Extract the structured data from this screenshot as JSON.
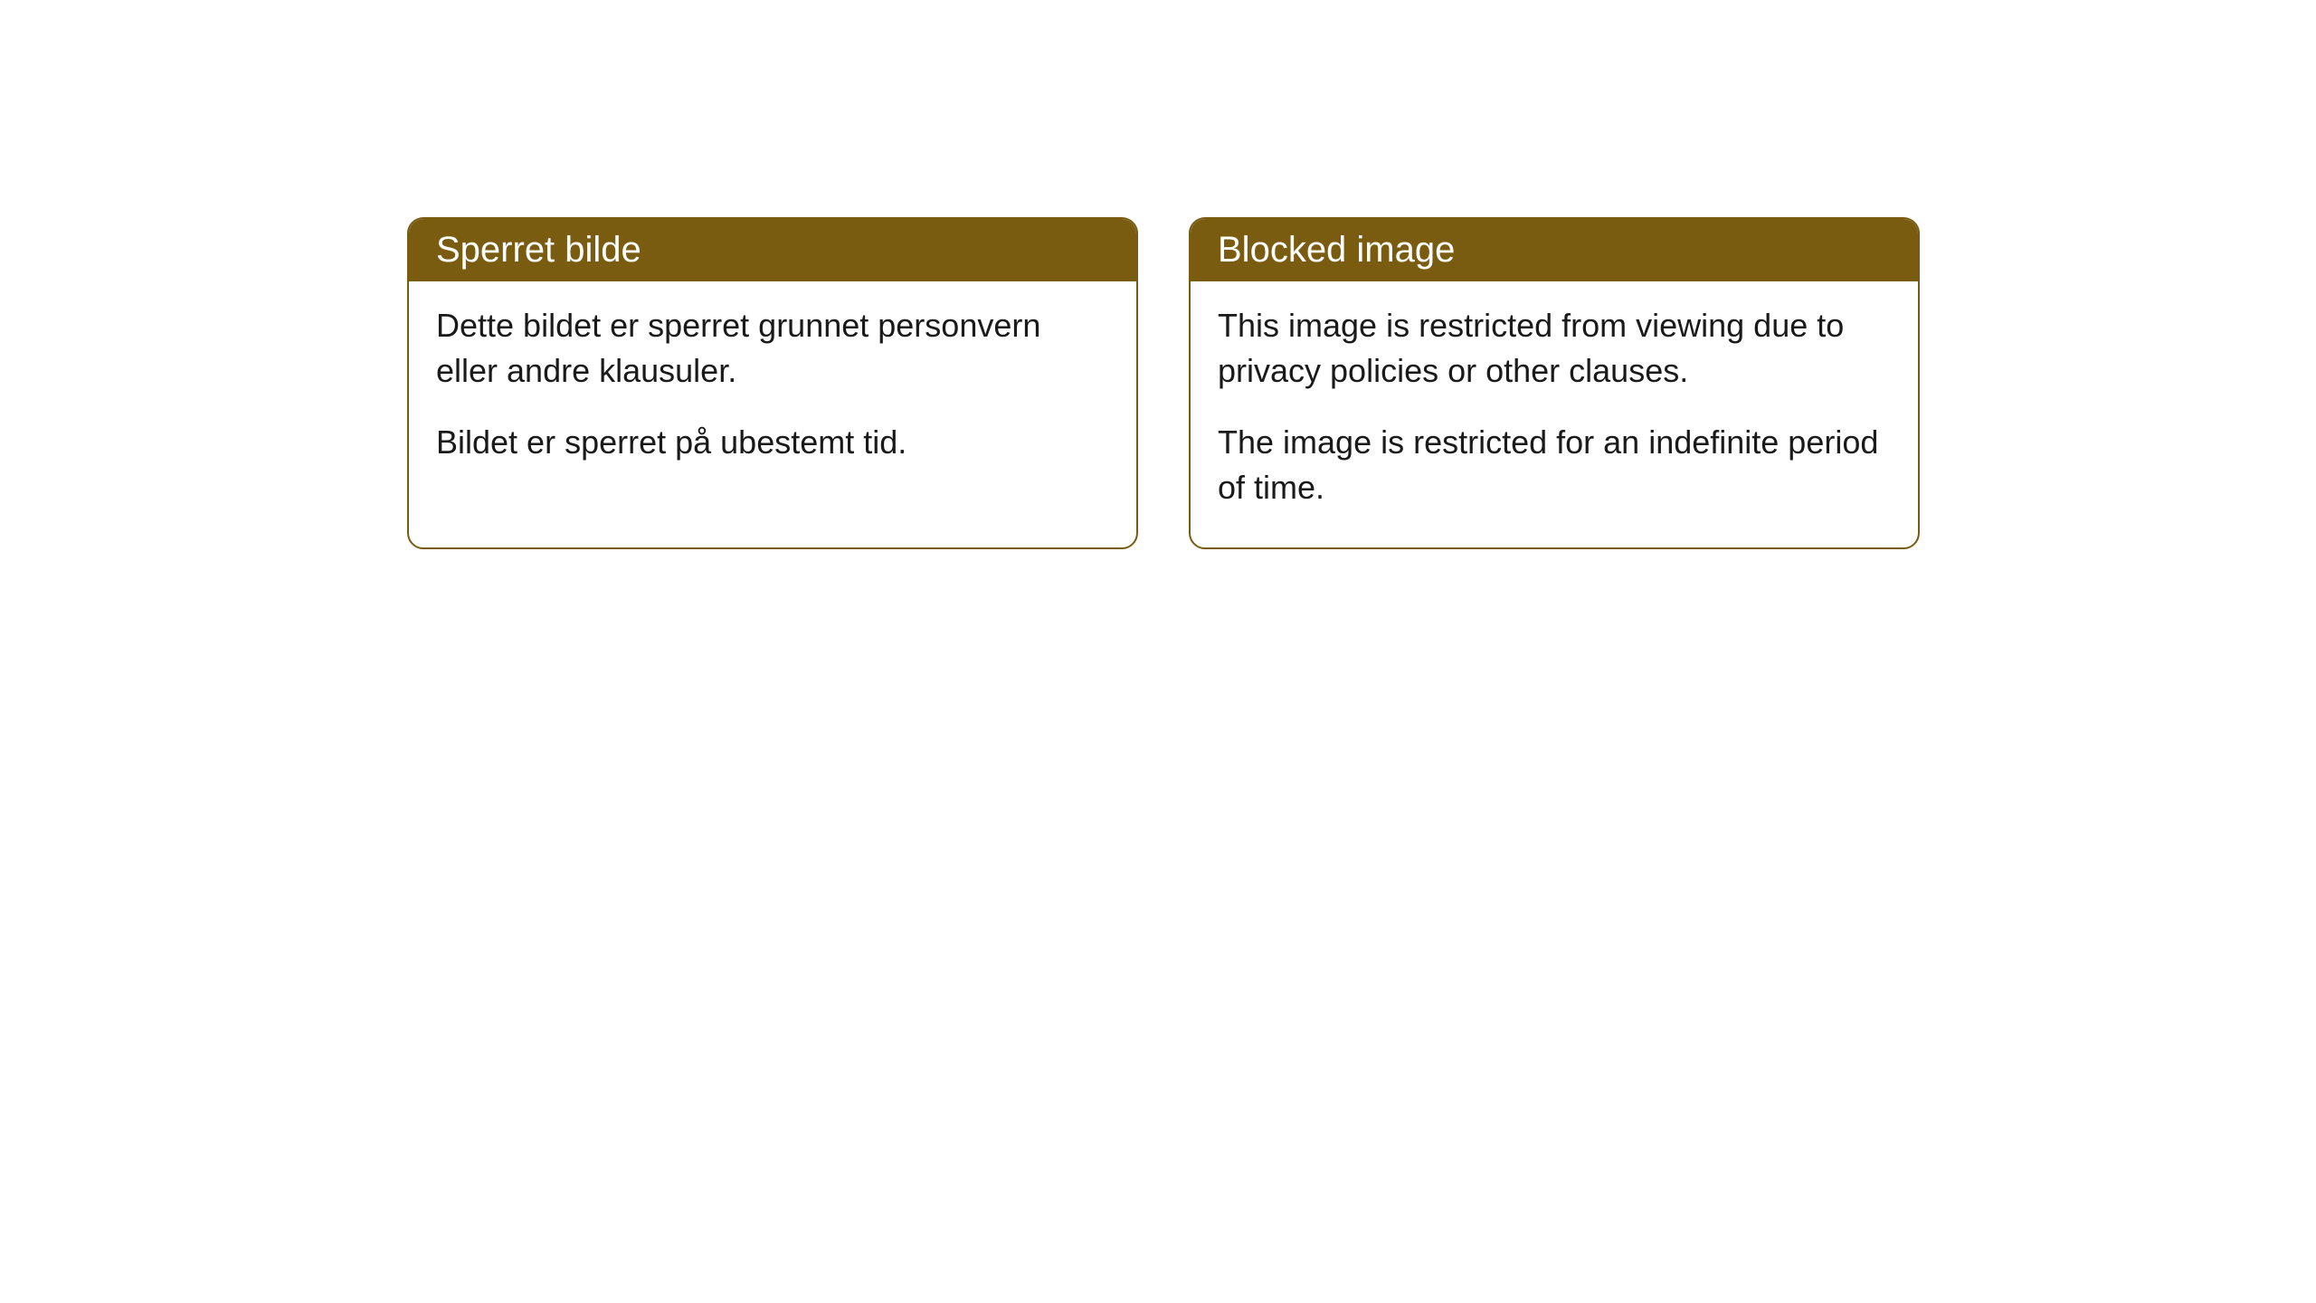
{
  "cards": [
    {
      "title": "Sperret bilde",
      "paragraph1": "Dette bildet er sperret grunnet personvern eller andre klausuler.",
      "paragraph2": "Bildet er sperret på ubestemt tid."
    },
    {
      "title": "Blocked image",
      "paragraph1": "This image is restricted from viewing due to privacy policies or other clauses.",
      "paragraph2": "The image is restricted for an indefinite period of time."
    }
  ],
  "styling": {
    "header_background_color": "#7a5c11",
    "header_text_color": "#ffffff",
    "card_border_color": "#7a5c11",
    "card_background_color": "#ffffff",
    "body_text_color": "#1a1a1a",
    "page_background_color": "#ffffff",
    "border_radius": 18,
    "header_fontsize": 40,
    "body_fontsize": 36
  }
}
